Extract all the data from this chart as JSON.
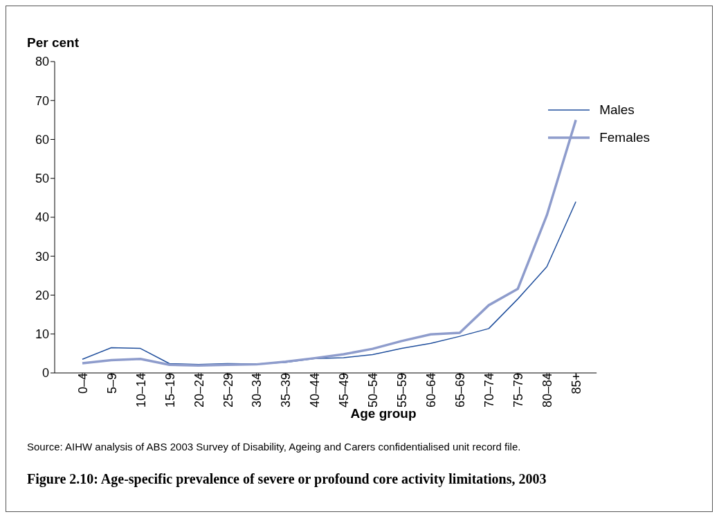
{
  "chart_data": {
    "type": "line",
    "title": "Figure 2.10: Age-specific prevalence of severe or profound core activity limitations, 2003",
    "xlabel": "Age group",
    "ylabel": "Per cent",
    "annotations": [
      "Source: AIHW analysis of ABS 2003 Survey of Disability, Ageing and Carers confidentialised unit record file."
    ],
    "categories": [
      "0–4",
      "5–9",
      "10–14",
      "15–19",
      "20–24",
      "25–29",
      "30–34",
      "35–39",
      "40–44",
      "45–49",
      "50–54",
      "55–59",
      "60–64",
      "65–69",
      "70–74",
      "75–79",
      "80–84",
      "85+"
    ],
    "series": [
      {
        "name": "Males",
        "color": "#1f4e9c",
        "values": [
          3.5,
          6.5,
          6.3,
          2.4,
          2.2,
          2.4,
          2.3,
          2.7,
          3.7,
          3.9,
          4.7,
          6.3,
          7.6,
          9.4,
          11.4,
          19,
          27.3,
          44
        ]
      },
      {
        "name": "Females",
        "color": "#8e9ccc",
        "values": [
          2.5,
          3.3,
          3.6,
          2.1,
          1.9,
          2.1,
          2.2,
          2.9,
          3.8,
          4.8,
          6.2,
          8.2,
          9.9,
          10.3,
          17.4,
          21.6,
          40.5,
          65
        ]
      }
    ],
    "ylim": [
      0,
      80
    ],
    "yticks": [
      0,
      10,
      20,
      30,
      40,
      50,
      60,
      70,
      80
    ],
    "grid": false,
    "legend": "top right",
    "marker": "none",
    "line_style": "solid"
  }
}
